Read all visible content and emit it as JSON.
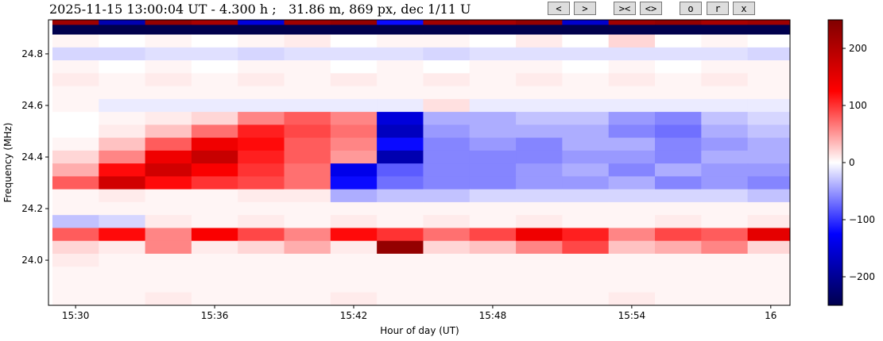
{
  "header": {
    "title": "2025-11-15 13:00:04 UT - 4.300 h ;   31.86 m, 869 px, dec 1/11 U"
  },
  "buttons": [
    {
      "label": "<",
      "name": "prev-button"
    },
    {
      "label": ">",
      "name": "next-button"
    },
    {
      "label": "><",
      "name": "zoom-in-button"
    },
    {
      "label": "<>",
      "name": "zoom-out-button"
    },
    {
      "label": "o",
      "name": "o-button"
    },
    {
      "label": "r",
      "name": "r-button"
    },
    {
      "label": "x",
      "name": "x-button"
    }
  ],
  "chart_data": {
    "type": "heatmap",
    "xlabel": "Hour of day (UT)",
    "ylabel": "Frequency (MHz)",
    "xlim_minutes": [
      928.83,
      960.83
    ],
    "ylim": [
      23.825,
      24.932
    ],
    "xticks": [
      {
        "label": "15:30",
        "min": 930
      },
      {
        "label": "15:36",
        "min": 936
      },
      {
        "label": "15:42",
        "min": 942
      },
      {
        "label": "15:48",
        "min": 948
      },
      {
        "label": "15:54",
        "min": 954
      },
      {
        "label": "16",
        "min": 960
      }
    ],
    "yticks": [
      {
        "label": "24.0",
        "v": 24.0
      },
      {
        "label": "24.2",
        "v": 24.2
      },
      {
        "label": "24.4",
        "v": 24.4
      },
      {
        "label": "24.6",
        "v": 24.6
      },
      {
        "label": "24.8",
        "v": 24.8
      }
    ],
    "colorbar": {
      "range": [
        -250,
        250
      ],
      "ticks": [
        "200",
        "100",
        "0",
        "−100",
        "−200"
      ],
      "tick_values": [
        200,
        100,
        0,
        -100,
        -200
      ],
      "colormap": "seismic"
    },
    "time_centers_min": [
      930,
      932,
      934,
      936,
      938,
      940,
      942,
      944,
      946,
      948,
      950,
      952,
      954,
      956,
      958,
      960
    ],
    "time_step_min": 2,
    "freq_centers": [
      24.925,
      24.9,
      24.85,
      24.8,
      24.75,
      24.7,
      24.65,
      24.6,
      24.55,
      24.5,
      24.45,
      24.4,
      24.35,
      24.3,
      24.25,
      24.2,
      24.15,
      24.1,
      24.05,
      24.0,
      23.95,
      23.9,
      23.85
    ],
    "values": [
      [
        220,
        -180,
        230,
        210,
        -150,
        220,
        230,
        -120,
        220,
        210,
        230,
        -160,
        220,
        230,
        210,
        220
      ],
      [
        -250,
        -250,
        -250,
        -250,
        -250,
        -250,
        -250,
        -250,
        -250,
        -250,
        -250,
        -250,
        -250,
        -250,
        -250,
        -250
      ],
      [
        5,
        0,
        5,
        0,
        5,
        10,
        0,
        5,
        5,
        0,
        10,
        0,
        20,
        0,
        5,
        0
      ],
      [
        -20,
        -20,
        -15,
        -15,
        -20,
        -15,
        -15,
        -15,
        -20,
        -15,
        -15,
        -15,
        -15,
        -15,
        -15,
        -20
      ],
      [
        5,
        0,
        5,
        0,
        5,
        5,
        0,
        5,
        0,
        5,
        5,
        0,
        5,
        0,
        5,
        5
      ],
      [
        10,
        5,
        10,
        5,
        10,
        5,
        10,
        5,
        10,
        5,
        10,
        5,
        10,
        5,
        10,
        5
      ],
      [
        5,
        5,
        5,
        5,
        5,
        5,
        5,
        5,
        5,
        5,
        5,
        5,
        5,
        5,
        5,
        5
      ],
      [
        5,
        -10,
        -10,
        -10,
        -10,
        -10,
        -10,
        -10,
        15,
        -10,
        -10,
        -10,
        -10,
        -10,
        -10,
        -10
      ],
      [
        0,
        5,
        10,
        20,
        60,
        80,
        60,
        -150,
        -40,
        -40,
        -30,
        -30,
        -50,
        -60,
        -30,
        -20
      ],
      [
        0,
        10,
        30,
        70,
        110,
        90,
        70,
        -170,
        -50,
        -40,
        -40,
        -40,
        -60,
        -70,
        -40,
        -30
      ],
      [
        5,
        30,
        80,
        140,
        120,
        80,
        60,
        -120,
        -60,
        -50,
        -60,
        -40,
        -40,
        -60,
        -50,
        -40
      ],
      [
        20,
        60,
        140,
        180,
        110,
        80,
        50,
        -180,
        -60,
        -60,
        -60,
        -50,
        -50,
        -60,
        -40,
        -40
      ],
      [
        40,
        120,
        170,
        130,
        100,
        70,
        -140,
        -80,
        -60,
        -60,
        -50,
        -40,
        -60,
        -40,
        -50,
        -50
      ],
      [
        80,
        170,
        120,
        100,
        90,
        70,
        -120,
        -70,
        -60,
        -60,
        -50,
        -50,
        -40,
        -60,
        -50,
        -60
      ],
      [
        5,
        10,
        5,
        5,
        10,
        10,
        -40,
        -30,
        -30,
        -20,
        -20,
        -20,
        -20,
        -20,
        -20,
        -30
      ],
      [
        5,
        5,
        5,
        5,
        5,
        5,
        5,
        5,
        5,
        5,
        5,
        5,
        5,
        5,
        5,
        5
      ],
      [
        -30,
        -20,
        10,
        5,
        10,
        5,
        10,
        5,
        10,
        5,
        10,
        5,
        5,
        10,
        5,
        10
      ],
      [
        80,
        120,
        60,
        130,
        90,
        60,
        120,
        100,
        70,
        90,
        140,
        110,
        60,
        90,
        80,
        150
      ],
      [
        20,
        10,
        60,
        10,
        20,
        40,
        10,
        230,
        20,
        30,
        60,
        90,
        30,
        40,
        60,
        20
      ],
      [
        10,
        5,
        5,
        5,
        5,
        5,
        5,
        5,
        5,
        5,
        5,
        5,
        5,
        5,
        5,
        5
      ],
      [
        5,
        5,
        5,
        5,
        5,
        5,
        5,
        5,
        5,
        5,
        5,
        5,
        5,
        5,
        5,
        5
      ],
      [
        5,
        5,
        5,
        5,
        5,
        5,
        5,
        5,
        5,
        5,
        5,
        5,
        5,
        5,
        5,
        5
      ],
      [
        5,
        5,
        10,
        5,
        5,
        5,
        10,
        5,
        5,
        5,
        5,
        5,
        10,
        5,
        5,
        5
      ]
    ]
  }
}
